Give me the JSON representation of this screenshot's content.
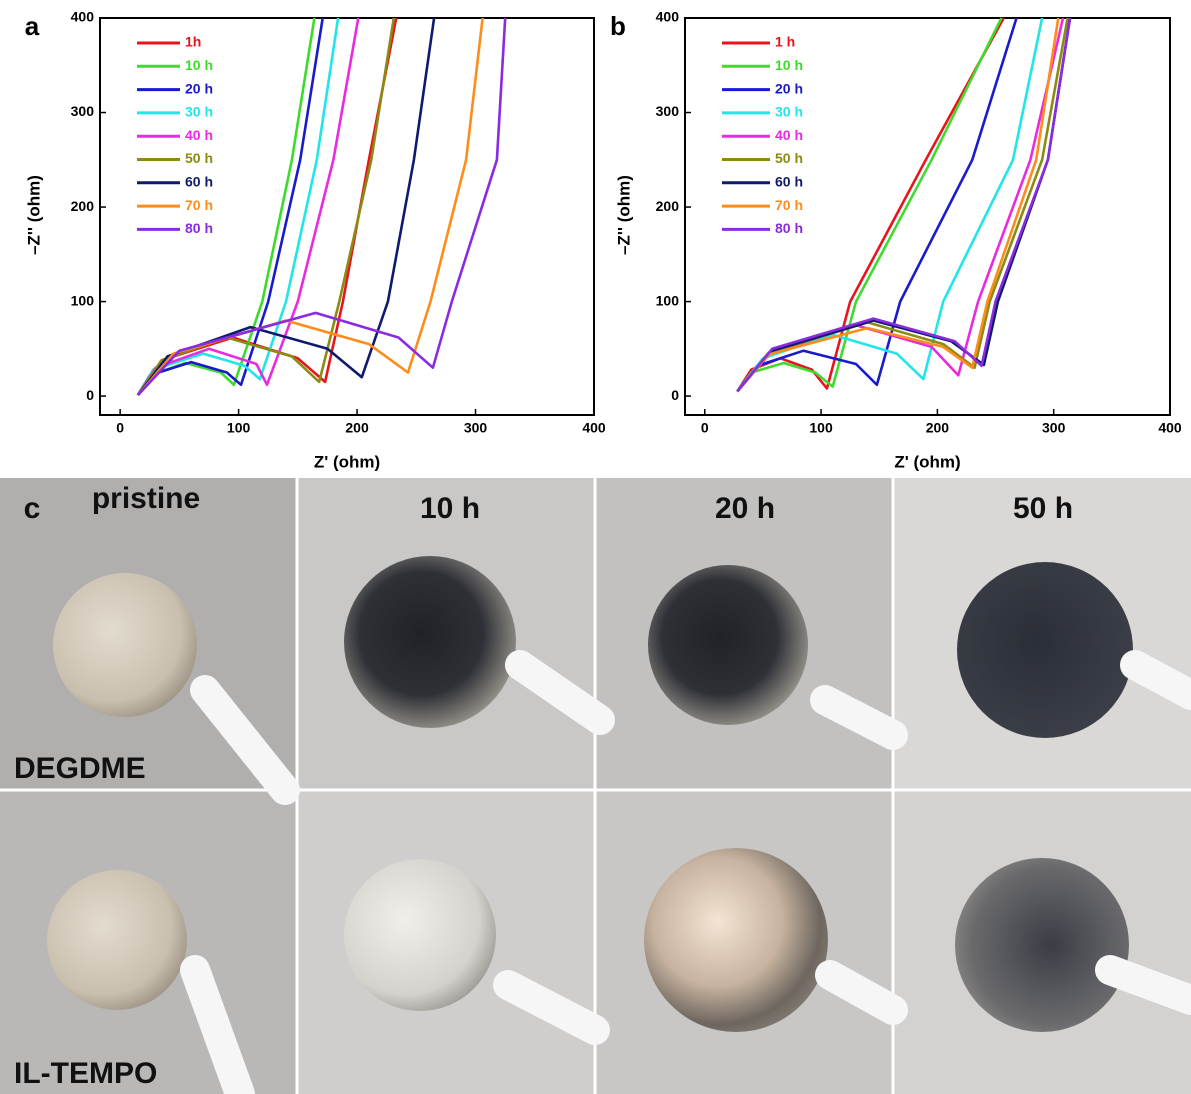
{
  "chart_data": [
    {
      "type": "line",
      "panel_label": "a",
      "x_label": "Z' (ohm)",
      "y_label": "–Z'' (ohm)",
      "xlim": [
        -17,
        400
      ],
      "ylim": [
        -20,
        400
      ],
      "xticks": [
        0,
        100,
        200,
        300,
        400
      ],
      "yticks": [
        0,
        100,
        200,
        300,
        400
      ],
      "legend": "upper left",
      "series": [
        {
          "name": "1h",
          "color": "#e8141c",
          "x": [
            15,
            35,
            95,
            150,
            173,
            188,
            210,
            233
          ],
          "values": [
            1,
            38,
            62,
            40,
            15,
            100,
            250,
            400
          ]
        },
        {
          "name": "10 h",
          "color": "#3ddc2c",
          "x": [
            15,
            25,
            55,
            85,
            96,
            120,
            145,
            164
          ],
          "values": [
            1,
            22,
            35,
            25,
            12,
            100,
            250,
            400
          ]
        },
        {
          "name": "20 h",
          "color": "#1a1acd",
          "x": [
            15,
            25,
            60,
            90,
            102,
            125,
            152,
            171
          ],
          "values": [
            1,
            22,
            36,
            25,
            12,
            100,
            250,
            400
          ]
        },
        {
          "name": "30 h",
          "color": "#22e5e8",
          "x": [
            15,
            28,
            70,
            105,
            118,
            140,
            166,
            184
          ],
          "values": [
            1,
            28,
            45,
            32,
            18,
            100,
            250,
            400
          ]
        },
        {
          "name": "40 h",
          "color": "#e82be0",
          "x": [
            15,
            30,
            75,
            115,
            124,
            150,
            180,
            201
          ],
          "values": [
            1,
            30,
            50,
            34,
            12,
            100,
            250,
            400
          ]
        },
        {
          "name": "50 h",
          "color": "#8b8b14",
          "x": [
            15,
            35,
            90,
            145,
            168,
            185,
            212,
            231
          ],
          "values": [
            1,
            38,
            62,
            42,
            15,
            100,
            250,
            400
          ]
        },
        {
          "name": "60 h",
          "color": "#0e1a6e",
          "x": [
            15,
            40,
            110,
            175,
            204,
            226,
            248,
            265
          ],
          "values": [
            1,
            42,
            73,
            50,
            20,
            100,
            250,
            400
          ]
        },
        {
          "name": "70 h",
          "color": "#ff8c1a",
          "x": [
            15,
            45,
            140,
            210,
            243,
            262,
            292,
            306
          ],
          "values": [
            1,
            45,
            80,
            55,
            25,
            100,
            250,
            400
          ]
        },
        {
          "name": "80 h",
          "color": "#8a2be2",
          "x": [
            15,
            50,
            165,
            235,
            264,
            280,
            318,
            325
          ],
          "values": [
            1,
            48,
            88,
            62,
            30,
            100,
            250,
            400
          ]
        }
      ]
    },
    {
      "type": "line",
      "panel_label": "b",
      "x_label": "Z' (ohm)",
      "y_label": "–Z'' (ohm)",
      "xlim": [
        -17,
        400
      ],
      "ylim": [
        -20,
        400
      ],
      "xticks": [
        0,
        100,
        200,
        300,
        400
      ],
      "yticks": [
        0,
        100,
        200,
        300,
        400
      ],
      "legend": "upper left",
      "series": [
        {
          "name": "1 h",
          "color": "#e8141c",
          "x": [
            28,
            40,
            65,
            92,
            105,
            125,
            190,
            257
          ],
          "values": [
            5,
            28,
            40,
            28,
            8,
            100,
            250,
            400
          ]
        },
        {
          "name": "10 h",
          "color": "#3ddc2c",
          "x": [
            28,
            40,
            68,
            95,
            110,
            130,
            195,
            255
          ],
          "values": [
            5,
            25,
            35,
            25,
            10,
            100,
            250,
            400
          ]
        },
        {
          "name": "20 h",
          "color": "#1a1acd",
          "x": [
            28,
            45,
            85,
            130,
            148,
            168,
            230,
            268
          ],
          "values": [
            5,
            32,
            48,
            34,
            12,
            100,
            250,
            400
          ]
        },
        {
          "name": "30 h",
          "color": "#22e5e8",
          "x": [
            28,
            50,
            110,
            165,
            188,
            205,
            265,
            290
          ],
          "values": [
            5,
            40,
            65,
            45,
            18,
            100,
            250,
            400
          ]
        },
        {
          "name": "40 h",
          "color": "#e82be0",
          "x": [
            28,
            55,
            130,
            195,
            218,
            235,
            280,
            308
          ],
          "values": [
            5,
            45,
            75,
            52,
            22,
            100,
            250,
            400
          ]
        },
        {
          "name": "50 h",
          "color": "#8b8b14",
          "x": [
            28,
            55,
            140,
            205,
            232,
            245,
            290,
            312
          ],
          "values": [
            5,
            46,
            78,
            55,
            30,
            100,
            250,
            400
          ]
        },
        {
          "name": "60 h",
          "color": "#0e1a6e",
          "x": [
            28,
            58,
            145,
            212,
            240,
            252,
            295,
            314
          ],
          "values": [
            5,
            48,
            80,
            58,
            33,
            100,
            250,
            400
          ]
        },
        {
          "name": "70 h",
          "color": "#ff8c1a",
          "x": [
            28,
            55,
            140,
            205,
            230,
            243,
            285,
            304
          ],
          "values": [
            5,
            44,
            72,
            52,
            30,
            100,
            250,
            400
          ]
        },
        {
          "name": "80 h",
          "color": "#8a2be2",
          "x": [
            28,
            58,
            145,
            215,
            238,
            250,
            295,
            314
          ],
          "values": [
            5,
            50,
            82,
            58,
            32,
            100,
            250,
            400
          ]
        }
      ]
    }
  ],
  "photos": {
    "panel_label": "c",
    "columns": [
      "pristine",
      "10 h",
      "20 h",
      "50 h"
    ],
    "rows": [
      "DEGDME",
      "IL-TEMPO"
    ]
  }
}
